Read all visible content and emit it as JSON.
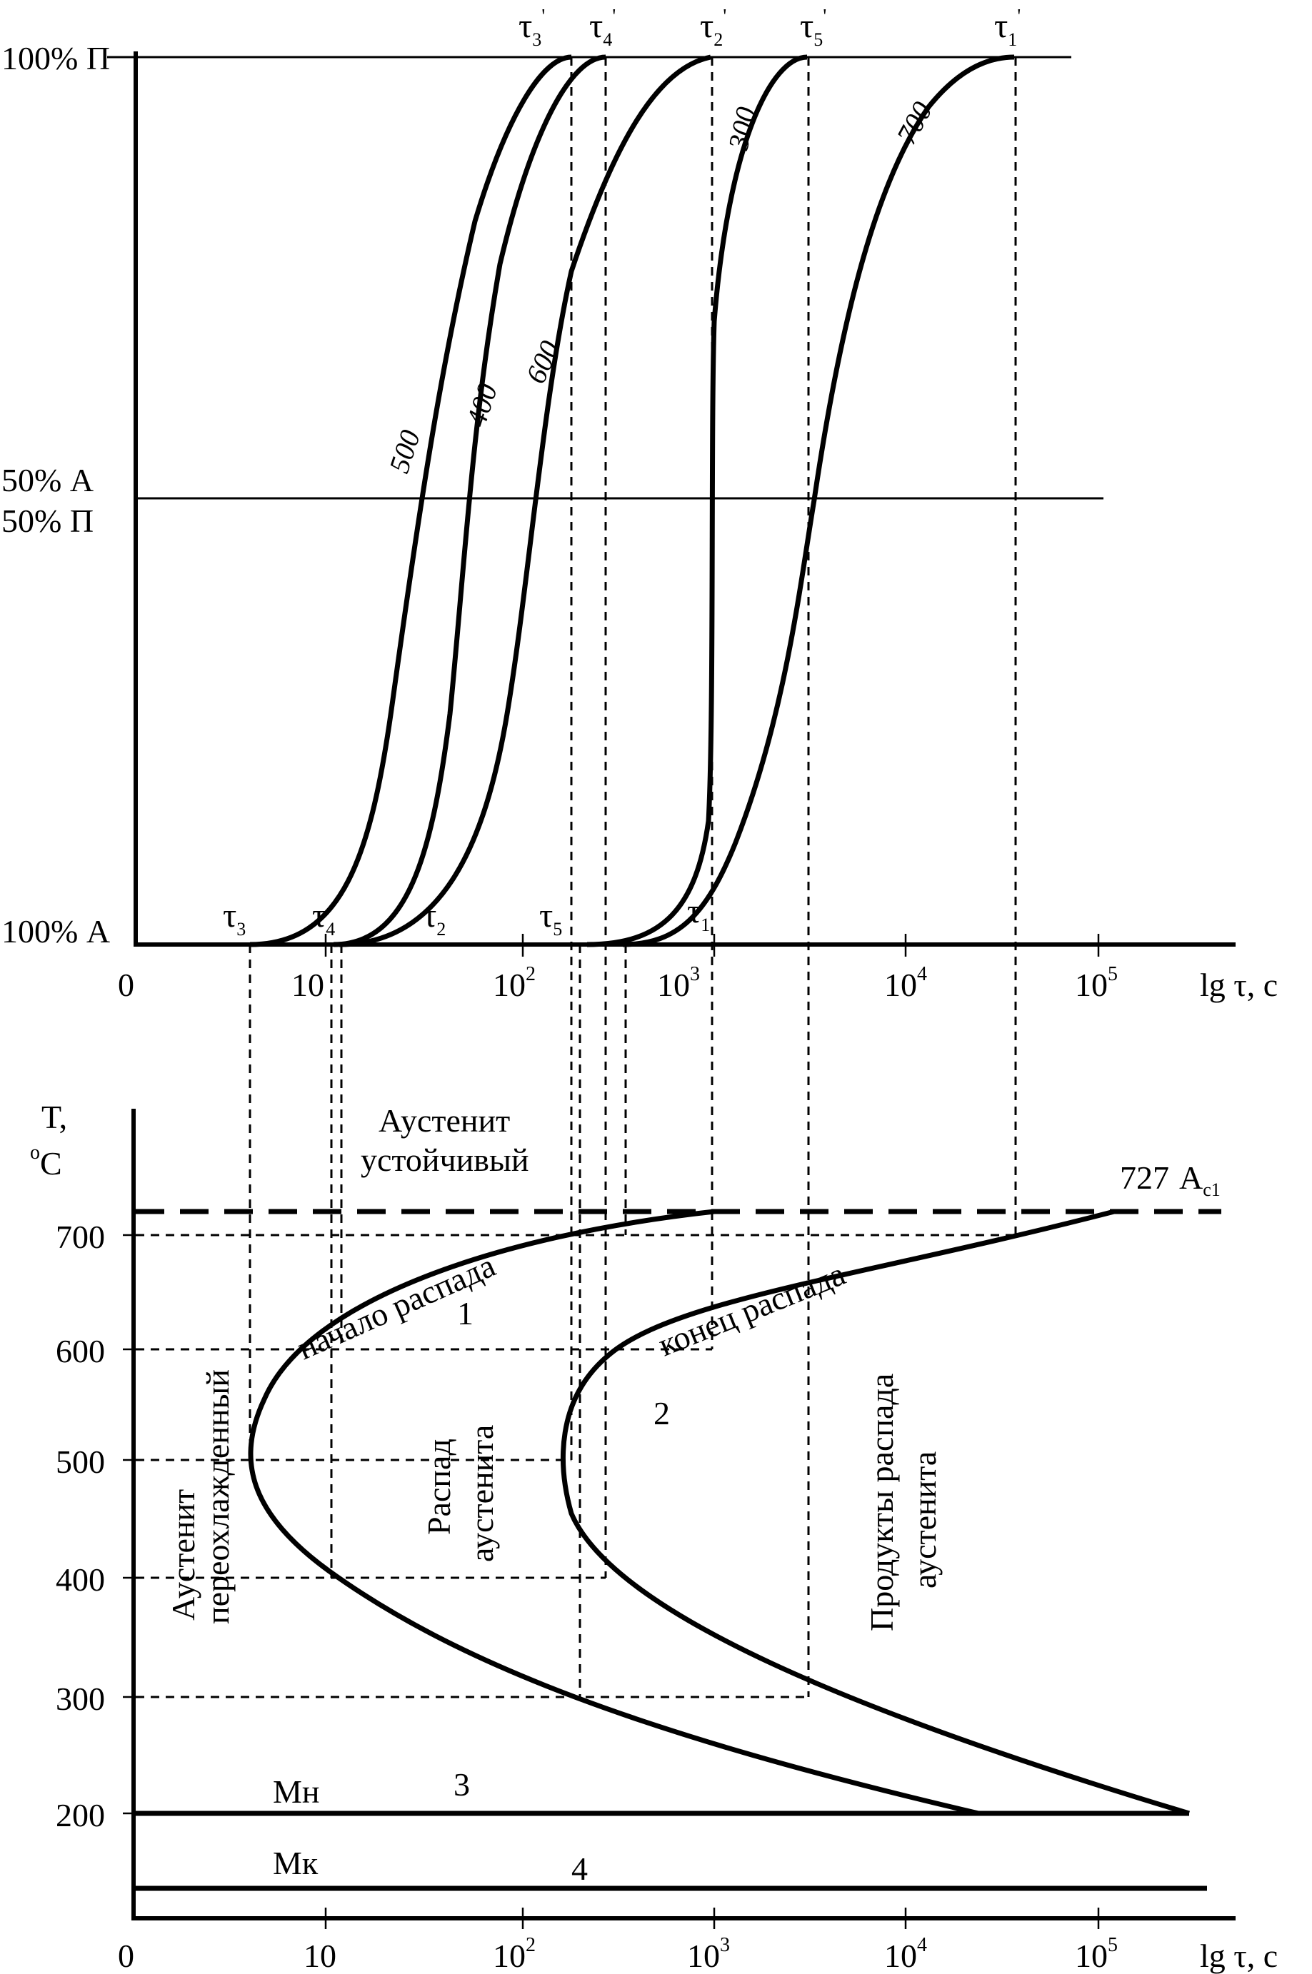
{
  "top_panel": {
    "y_labels": {
      "p100": "100% П",
      "a50": "50% А",
      "p50": "50% П",
      "a100": "100% А"
    },
    "curves": [
      {
        "label": "500",
        "start": "τ3",
        "end": "τ3'"
      },
      {
        "label": "400",
        "start": "τ4",
        "end": "τ4'"
      },
      {
        "label": "600",
        "start": "τ2",
        "end": "τ2'"
      },
      {
        "label": "300",
        "start": "τ5",
        "end": "τ5'"
      },
      {
        "label": "700",
        "start": "τ1",
        "end": "τ1'"
      }
    ],
    "start_taus": [
      {
        "sym": "τ",
        "sub": "3"
      },
      {
        "sym": "τ",
        "sub": "4"
      },
      {
        "sym": "τ",
        "sub": "2"
      },
      {
        "sym": "τ",
        "sub": "5"
      },
      {
        "sym": "τ",
        "sub": "1"
      }
    ],
    "end_taus": [
      {
        "sym": "τ",
        "sub": "3",
        "prime": "'"
      },
      {
        "sym": "τ",
        "sub": "4",
        "prime": "'"
      },
      {
        "sym": "τ",
        "sub": "2",
        "prime": "'"
      },
      {
        "sym": "τ",
        "sub": "5",
        "prime": "'"
      },
      {
        "sym": "τ",
        "sub": "1",
        "prime": "'"
      }
    ],
    "x_axis": {
      "ticks": [
        {
          "base": "0",
          "exp": ""
        },
        {
          "base": "10",
          "exp": ""
        },
        {
          "base": "10",
          "exp": "2"
        },
        {
          "base": "10",
          "exp": "3"
        },
        {
          "base": "10",
          "exp": "4"
        },
        {
          "base": "10",
          "exp": "5"
        }
      ],
      "label": "lg τ, с"
    }
  },
  "bottom_panel": {
    "y_axis": {
      "label_line1": "T,",
      "label_unit_sup": "o",
      "label_unit": "C",
      "ticks": [
        "700",
        "600",
        "500",
        "400",
        "300",
        "200"
      ]
    },
    "a1_line": {
      "value": "727",
      "label": "A",
      "sub": "c1"
    },
    "curve_labels": {
      "start_text": "начало распада",
      "end_text": "конец распада",
      "n1": "1",
      "n2": "2",
      "n3": "3",
      "n4": "4"
    },
    "regions": {
      "stable_line1": "Аустенит",
      "stable_line2": "устойчивый",
      "supercooled_line1": "Аустенит",
      "supercooled_line2": "переохлажденный",
      "decay_line1": "Распад",
      "decay_line2": "аустенита",
      "products_line1": "Продукты распада",
      "products_line2": "аустенита"
    },
    "martensite": {
      "mn": "Мн",
      "mk": "Мк"
    },
    "x_axis": {
      "ticks": [
        {
          "base": "0",
          "exp": ""
        },
        {
          "base": "10",
          "exp": ""
        },
        {
          "base": "10",
          "exp": "2"
        },
        {
          "base": "10",
          "exp": "3"
        },
        {
          "base": "10",
          "exp": "4"
        },
        {
          "base": "10",
          "exp": "5"
        }
      ],
      "label": "lg τ, с"
    }
  }
}
